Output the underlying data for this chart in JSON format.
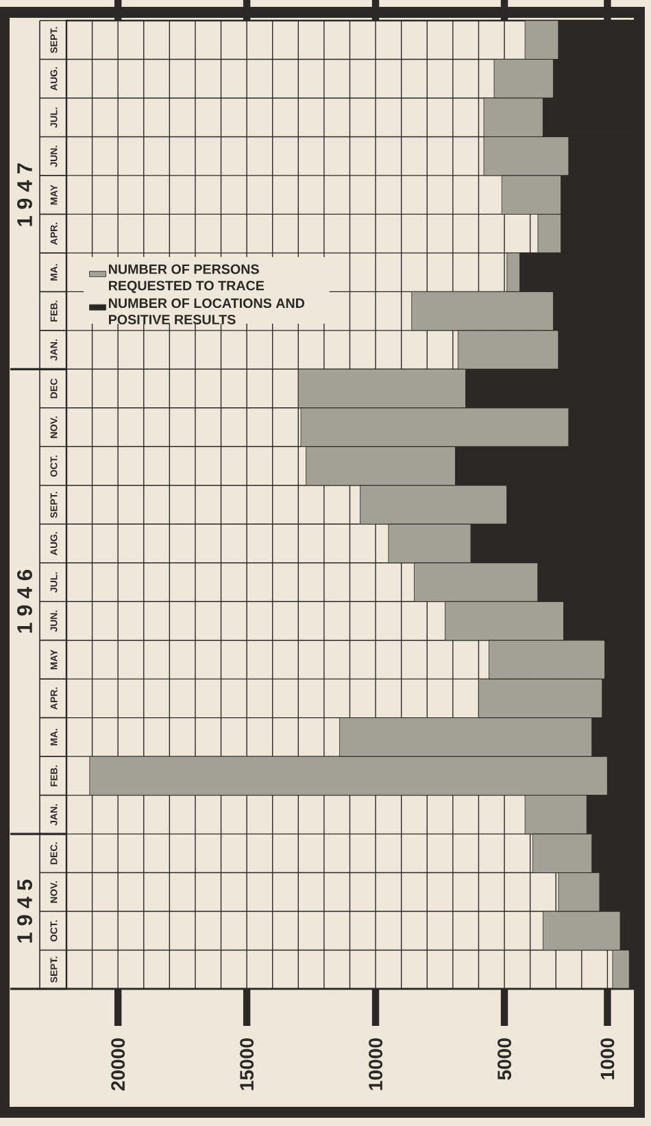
{
  "chart_data": {
    "type": "bar",
    "orientation": "horizontal",
    "categories": [
      "SEPT.",
      "AUG.",
      "JUL.",
      "JUN.",
      "MAY",
      "APR.",
      "MA.",
      "FEB.",
      "JAN.",
      "DEC",
      "NOV.",
      "OCT.",
      "SEPT.",
      "AUG.",
      "JUL.",
      "JUN.",
      "MAY",
      "APR.",
      "MA.",
      "FEB.",
      "JAN.",
      "DEC.",
      "NOV.",
      "OCT.",
      "SEPT."
    ],
    "stacked": true,
    "series": [
      {
        "name": "NUMBER OF LOCATIONS AND POSITIVE RESULTS",
        "color": "#2b2825",
        "values": [
          2900,
          3100,
          3500,
          2500,
          2800,
          2800,
          4400,
          3100,
          2900,
          6500,
          2500,
          6900,
          4900,
          6300,
          3700,
          2700,
          1100,
          1200,
          1600,
          1000,
          1800,
          1600,
          1300,
          500,
          150
        ]
      },
      {
        "name": "NUMBER OF PERSONS REQUESTED TO TRACE",
        "color": "#a3a195",
        "values": [
          1300,
          2300,
          2300,
          3300,
          2300,
          900,
          500,
          5500,
          3900,
          6500,
          10400,
          5800,
          5700,
          3200,
          4800,
          4600,
          4500,
          4800,
          9800,
          20100,
          2400,
          2300,
          1600,
          3000,
          650
        ]
      }
    ],
    "xlim": [
      22000,
      0
    ],
    "xticks": [
      1000,
      {
        "value": 2000,
        "label": null
      },
      {
        "value": 3000,
        "label": null
      },
      {
        "value": 4000,
        "label": null
      },
      5000,
      {
        "value": 6000,
        "label": null
      },
      {
        "value": 7000,
        "label": null
      },
      {
        "value": 8000,
        "label": null
      },
      {
        "value": 9000,
        "label": null
      },
      10000,
      {
        "value": 11000,
        "label": null
      },
      {
        "value": 12000,
        "label": null
      },
      {
        "value": 13000,
        "label": null
      },
      {
        "value": 14000,
        "label": null
      },
      15000,
      {
        "value": 16000,
        "label": null
      },
      {
        "value": 17000,
        "label": null
      },
      {
        "value": 18000,
        "label": null
      },
      {
        "value": 19000,
        "label": null
      },
      20000,
      {
        "value": 21000,
        "label": null
      }
    ],
    "grid": true,
    "legend": "top left",
    "annotations": [
      "1 9 4 7",
      "1 9 4 6",
      "1 9 4 5"
    ]
  }
}
